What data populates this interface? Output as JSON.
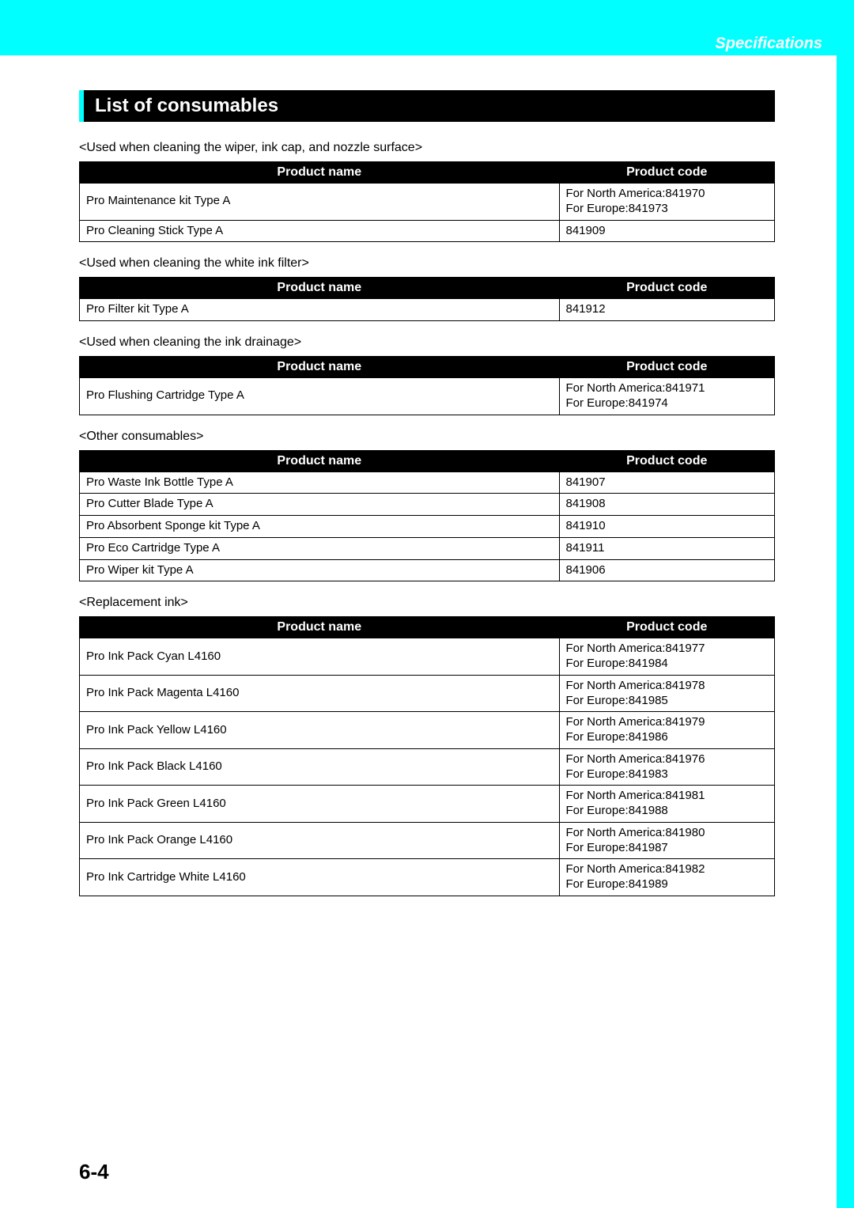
{
  "header": {
    "label": "Specifications"
  },
  "section_title": "List of consumables",
  "page_number": "6-4",
  "tables": [
    {
      "caption": "<Used when cleaning the wiper, ink cap, and nozzle surface>",
      "col1": "Product name",
      "col2": "Product code",
      "rows": [
        {
          "name": "Pro Maintenance kit Type A",
          "code": "For North America:841970\nFor Europe:841973"
        },
        {
          "name": "Pro Cleaning Stick Type A",
          "code": "841909"
        }
      ]
    },
    {
      "caption": "<Used when cleaning the white ink filter>",
      "col1": "Product name",
      "col2": "Product code",
      "rows": [
        {
          "name": "Pro Filter kit Type A",
          "code": "841912"
        }
      ]
    },
    {
      "caption": "<Used when cleaning the ink drainage>",
      "col1": "Product name",
      "col2": "Product code",
      "rows": [
        {
          "name": "Pro Flushing Cartridge Type A",
          "code": "For North America:841971\nFor Europe:841974"
        }
      ]
    },
    {
      "caption": "<Other consumables>",
      "col1": "Product name",
      "col2": "Product code",
      "rows": [
        {
          "name": "Pro Waste Ink Bottle Type A",
          "code": "841907"
        },
        {
          "name": "Pro Cutter Blade Type A",
          "code": "841908"
        },
        {
          "name": "Pro Absorbent Sponge kit Type A",
          "code": "841910"
        },
        {
          "name": "Pro Eco Cartridge Type A",
          "code": "841911"
        },
        {
          "name": "Pro Wiper kit Type A",
          "code": "841906"
        }
      ]
    },
    {
      "caption": "<Replacement ink>",
      "col1": "Product name",
      "col2": "Product code",
      "rows": [
        {
          "name": "Pro Ink Pack Cyan L4160",
          "code": "For North America:841977\nFor Europe:841984"
        },
        {
          "name": "Pro Ink Pack Magenta L4160",
          "code": "For North America:841978\nFor Europe:841985"
        },
        {
          "name": "Pro Ink Pack Yellow L4160",
          "code": "For North America:841979\nFor Europe:841986"
        },
        {
          "name": "Pro Ink Pack Black L4160",
          "code": "For North America:841976\nFor Europe:841983"
        },
        {
          "name": "Pro Ink Pack Green L4160",
          "code": "For North America:841981\nFor Europe:841988"
        },
        {
          "name": "Pro Ink Pack Orange L4160",
          "code": "For North America:841980\nFor Europe:841987"
        },
        {
          "name": "Pro Ink Cartridge White L4160",
          "code": "For North America:841982\nFor Europe:841989"
        }
      ]
    }
  ]
}
